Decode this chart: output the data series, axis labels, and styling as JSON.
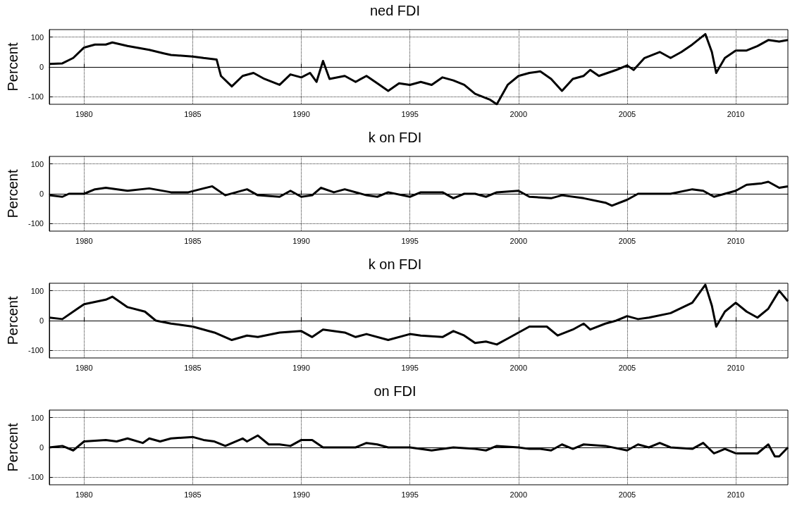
{
  "chart_data": [
    {
      "type": "line",
      "title": "ned FDI",
      "ylabel": "Percent",
      "xlim": [
        1978.4,
        2012.4
      ],
      "ylim": [
        -125,
        125
      ],
      "xticks": [
        1980,
        1985,
        1990,
        1995,
        2000,
        2005,
        2010
      ],
      "yticks": [
        -100,
        0,
        100
      ],
      "grid": true,
      "marker": "none",
      "line_style": "solid",
      "x": [
        1978.4,
        1979,
        1979.5,
        1980,
        1980.5,
        1981,
        1981.3,
        1982,
        1983,
        1983.7,
        1984,
        1985,
        1985.5,
        1986.1,
        1986.3,
        1986.8,
        1987.3,
        1987.8,
        1988.3,
        1989,
        1989.5,
        1990,
        1990.4,
        1990.7,
        1991,
        1991.3,
        1992,
        1992.5,
        1993,
        1993.5,
        1994,
        1994.5,
        1995,
        1995.5,
        1996,
        1996.5,
        1997,
        1997.5,
        1998,
        1998.7,
        1999,
        1999.5,
        2000,
        2000.5,
        2001,
        2001.5,
        2002,
        2002.5,
        2003,
        2003.3,
        2003.7,
        2004.5,
        2005,
        2005.3,
        2005.8,
        2006.5,
        2007,
        2007.5,
        2008,
        2008.6,
        2008.9,
        2009.1,
        2009.5,
        2010,
        2010.5,
        2011,
        2011.5,
        2012,
        2012.4
      ],
      "series": [
        {
          "color": "#000000",
          "values": [
            10,
            12,
            30,
            65,
            75,
            75,
            82,
            70,
            57,
            45,
            40,
            35,
            30,
            25,
            -30,
            -65,
            -30,
            -20,
            -40,
            -60,
            -25,
            -35,
            -20,
            -50,
            20,
            -40,
            -30,
            -50,
            -30,
            -55,
            -80,
            -55,
            -60,
            -50,
            -60,
            -35,
            -45,
            -60,
            -90,
            -110,
            -125,
            -60,
            -30,
            -20,
            -15,
            -40,
            -80,
            -40,
            -30,
            -10,
            -30,
            -10,
            5,
            -10,
            30,
            50,
            30,
            50,
            75,
            110,
            50,
            -20,
            30,
            55,
            55,
            70,
            90,
            85,
            90
          ]
        }
      ]
    },
    {
      "type": "line",
      "title": "k on FDI",
      "ylabel": "Percent",
      "xlim": [
        1978.4,
        2012.4
      ],
      "ylim": [
        -125,
        125
      ],
      "xticks": [
        1980,
        1985,
        1990,
        1995,
        2000,
        2005,
        2010
      ],
      "yticks": [
        -100,
        0,
        100
      ],
      "grid": true,
      "marker": "none",
      "line_style": "solid",
      "x": [
        1978.4,
        1979,
        1979.3,
        1980,
        1980.5,
        1981,
        1982,
        1983,
        1984,
        1984.8,
        1985.5,
        1985.9,
        1986.5,
        1987,
        1987.5,
        1988,
        1989,
        1989.5,
        1990,
        1990.5,
        1990.9,
        1991.5,
        1992,
        1993,
        1993.5,
        1994,
        1995,
        1995.5,
        1996.5,
        1997,
        1997.5,
        1998,
        1998.5,
        1999,
        2000,
        2000.5,
        2001.5,
        2002,
        2003,
        2004,
        2004.3,
        2005,
        2005.5,
        2006,
        2007,
        2008,
        2008.5,
        2009,
        2009.5,
        2010,
        2010.5,
        2011.2,
        2011.5,
        2012,
        2012.4
      ],
      "series": [
        {
          "color": "#000000",
          "values": [
            -5,
            -10,
            0,
            0,
            15,
            20,
            10,
            18,
            5,
            5,
            18,
            25,
            -5,
            5,
            15,
            -5,
            -10,
            10,
            -10,
            -5,
            20,
            5,
            15,
            -5,
            -10,
            5,
            -10,
            5,
            5,
            -15,
            0,
            0,
            -10,
            5,
            10,
            -10,
            -15,
            -5,
            -15,
            -30,
            -40,
            -20,
            0,
            0,
            0,
            15,
            10,
            -10,
            0,
            10,
            30,
            35,
            40,
            20,
            25
          ]
        }
      ]
    },
    {
      "type": "line",
      "title": "k on FDI",
      "ylabel": "Percent",
      "xlim": [
        1978.4,
        2012.4
      ],
      "ylim": [
        -125,
        125
      ],
      "xticks": [
        1980,
        1985,
        1990,
        1995,
        2000,
        2005,
        2010
      ],
      "yticks": [
        -100,
        0,
        100
      ],
      "grid": true,
      "marker": "none",
      "line_style": "solid",
      "x": [
        1978.4,
        1979,
        1979.7,
        1980,
        1981,
        1981.3,
        1982,
        1982.8,
        1983.3,
        1984,
        1985,
        1986,
        1986.8,
        1987.5,
        1988,
        1989,
        1990,
        1990.5,
        1991,
        1992,
        1992.5,
        1993,
        1994,
        1995,
        1995.5,
        1996.5,
        1997,
        1997.5,
        1998,
        1998.5,
        1999,
        1999.5,
        2000,
        2000.5,
        2001.3,
        2001.8,
        2002.5,
        2003,
        2003.3,
        2004,
        2004.5,
        2005,
        2005.5,
        2006,
        2007,
        2008,
        2008.6,
        2008.9,
        2009.1,
        2009.5,
        2010,
        2010.5,
        2011,
        2011.5,
        2012,
        2012.4
      ],
      "series": [
        {
          "color": "#000000",
          "values": [
            10,
            5,
            40,
            55,
            70,
            80,
            45,
            30,
            0,
            -10,
            -20,
            -40,
            -65,
            -50,
            -55,
            -40,
            -35,
            -55,
            -30,
            -40,
            -55,
            -45,
            -65,
            -45,
            -50,
            -55,
            -35,
            -50,
            -75,
            -70,
            -80,
            -60,
            -40,
            -20,
            -20,
            -50,
            -30,
            -10,
            -30,
            -10,
            0,
            15,
            5,
            10,
            25,
            60,
            120,
            50,
            -20,
            30,
            60,
            30,
            10,
            40,
            100,
            65
          ]
        }
      ]
    },
    {
      "type": "line",
      "title": "on FDI",
      "ylabel": "Percent",
      "xlim": [
        1978.4,
        2012.4
      ],
      "ylim": [
        -125,
        125
      ],
      "xticks": [
        1980,
        1985,
        1990,
        1995,
        2000,
        2005,
        2010
      ],
      "yticks": [
        -100,
        0,
        100
      ],
      "grid": true,
      "marker": "none",
      "line_style": "solid",
      "x": [
        1978.4,
        1979,
        1979.5,
        1980,
        1981,
        1981.5,
        1982,
        1982.7,
        1983,
        1983.5,
        1984,
        1985,
        1985.5,
        1986,
        1986.5,
        1987.3,
        1987.5,
        1988,
        1988.5,
        1989,
        1989.5,
        1990,
        1990.5,
        1991,
        1992,
        1992.5,
        1993,
        1993.5,
        1994,
        1995,
        1996,
        1997,
        1998,
        1998.5,
        1999,
        2000,
        2000.5,
        2001,
        2001.5,
        2002,
        2002.5,
        2003,
        2004,
        2005,
        2005.5,
        2006,
        2006.5,
        2007,
        2008,
        2008.5,
        2009,
        2009.5,
        2010,
        2011,
        2011.5,
        2011.8,
        2012,
        2012.4
      ],
      "series": [
        {
          "color": "#000000",
          "values": [
            0,
            5,
            -10,
            20,
            25,
            20,
            30,
            15,
            30,
            20,
            30,
            35,
            25,
            20,
            5,
            30,
            20,
            40,
            10,
            10,
            5,
            25,
            25,
            0,
            0,
            0,
            15,
            10,
            0,
            0,
            -10,
            0,
            -5,
            -10,
            5,
            0,
            -5,
            -5,
            -10,
            10,
            -5,
            10,
            5,
            -10,
            10,
            0,
            15,
            0,
            -5,
            15,
            -20,
            -5,
            -20,
            -20,
            10,
            -30,
            -30,
            0
          ]
        }
      ]
    }
  ]
}
